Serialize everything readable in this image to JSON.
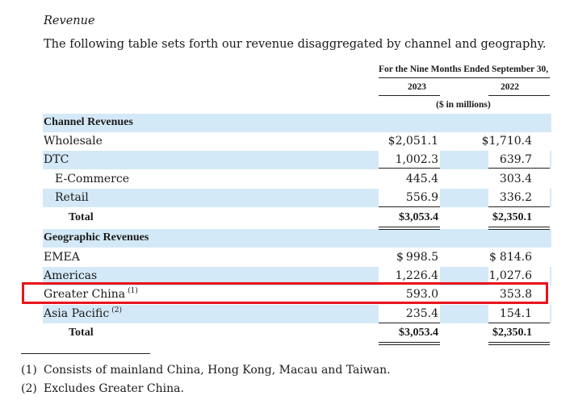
{
  "section_title": "Revenue",
  "intro": "The following table sets forth our revenue disaggregated by channel and geography.",
  "header": {
    "period": "For the Nine Months Ended September 30,",
    "col1": "2023",
    "col2": "2022",
    "units": "($ in millions)"
  },
  "rows": [
    {
      "label": "Channel Revenues",
      "style": "section",
      "sup": "",
      "v1": "",
      "v2": ""
    },
    {
      "label": "Wholesale",
      "style": "item",
      "sup": "",
      "v1": "$2,051.1",
      "v2": "$1,710.4"
    },
    {
      "label": "DTC",
      "style": "item",
      "sup": "",
      "v1": "1,002.3",
      "v2": "639.7"
    },
    {
      "label": "E-Commerce",
      "style": "sub",
      "sup": "",
      "v1": "445.4",
      "v2": "303.4"
    },
    {
      "label": "Retail",
      "style": "sub",
      "sup": "",
      "v1": "556.9",
      "v2": "336.2"
    },
    {
      "label": "Total",
      "style": "total",
      "sup": "",
      "v1": "$3,053.4",
      "v2": "$2,350.1"
    },
    {
      "label": "Geographic Revenues",
      "style": "section",
      "sup": "",
      "v1": "",
      "v2": ""
    },
    {
      "label": "EMEA",
      "style": "item",
      "sup": "",
      "v1": "998.5",
      "v2": "814.6",
      "dollar": true
    },
    {
      "label": "Americas",
      "style": "item",
      "sup": "",
      "v1": "1,226.4",
      "v2": "1,027.6"
    },
    {
      "label": "Greater China",
      "style": "item",
      "sup": "(1)",
      "v1": "593.0",
      "v2": "353.8"
    },
    {
      "label": "Asia Pacific",
      "style": "item",
      "sup": "(2)",
      "v1": "235.4",
      "v2": "154.1"
    },
    {
      "label": "Total",
      "style": "total",
      "sup": "",
      "v1": "$3,053.4",
      "v2": "$2,350.1"
    }
  ],
  "dollar_sign": "$",
  "footnotes": [
    {
      "num": "(1)",
      "text": "Consists of mainland China, Hong Kong, Macau and Taiwan."
    },
    {
      "num": "(2)",
      "text": "Excludes Greater China."
    }
  ],
  "highlight_color": "#e8141c",
  "row_tint": "#d4e9f7"
}
